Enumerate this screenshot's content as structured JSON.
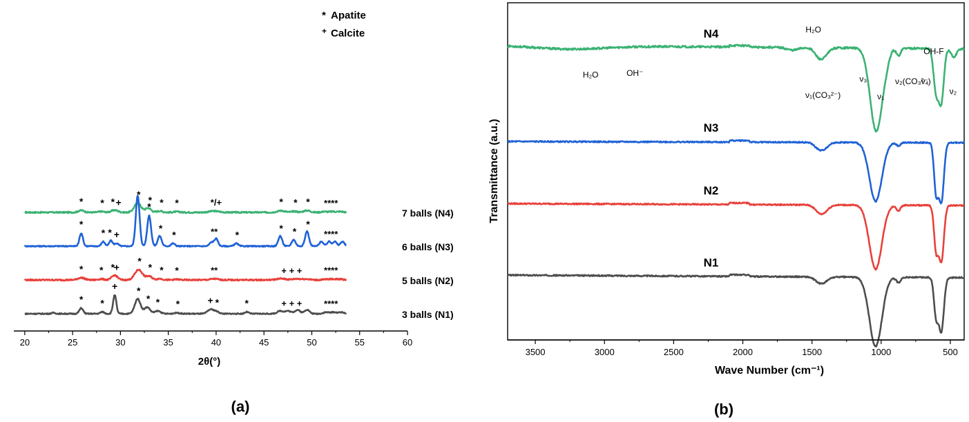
{
  "chart_data": [
    {
      "type": "line",
      "panel_label": "(a)",
      "xlabel": "2θ(°)",
      "ylabel": "",
      "xlim": [
        19,
        60
      ],
      "xticks": [
        20,
        25,
        30,
        35,
        40,
        45,
        50,
        55,
        60
      ],
      "grid": false,
      "legend": {
        "position": "top-right",
        "entries": [
          {
            "marker": "*",
            "label": "Apatite"
          },
          {
            "marker": "+",
            "label": "Calcite"
          }
        ]
      },
      "colors": {
        "N1": "#4d4d4d",
        "N2": "#e8413b",
        "N3": "#1f62d6",
        "N4": "#3bb273"
      },
      "series": [
        {
          "key": "N4",
          "name": "7 balls (N4)",
          "baseline": 0.6,
          "noise": 0.004,
          "scale": 0.5,
          "peaks": [
            [
              25.9,
              0.12,
              0.3
            ],
            [
              28.0,
              0.05,
              0.3
            ],
            [
              29.4,
              0.13,
              0.35
            ],
            [
              31.8,
              0.55,
              0.35
            ],
            [
              32.9,
              0.26,
              0.3
            ],
            [
              34.1,
              0.08,
              0.3
            ],
            [
              35.9,
              0.04,
              0.3
            ],
            [
              39.8,
              0.08,
              0.5
            ],
            [
              46.8,
              0.1,
              0.4
            ],
            [
              48.2,
              0.06,
              0.3
            ],
            [
              49.5,
              0.11,
              0.35
            ],
            [
              51.3,
              0.05,
              0.3
            ],
            [
              52.2,
              0.05,
              0.3
            ],
            [
              53.0,
              0.05,
              0.3
            ]
          ],
          "annotations": [
            {
              "x": 25.9,
              "t": "*"
            },
            {
              "x": 28.1,
              "t": "*"
            },
            {
              "x": 29.2,
              "t": "*"
            },
            {
              "x": 29.8,
              "t": "+"
            },
            {
              "x": 31.9,
              "t": "*"
            },
            {
              "x": 33.1,
              "t": "*"
            },
            {
              "x": 34.3,
              "t": "*"
            },
            {
              "x": 35.9,
              "t": "*"
            },
            {
              "x": 40.0,
              "t": "*/+"
            },
            {
              "x": 46.8,
              "t": "*"
            },
            {
              "x": 48.3,
              "t": "*"
            },
            {
              "x": 49.6,
              "t": "*"
            },
            {
              "x": 52.0,
              "t": "****"
            }
          ]
        },
        {
          "key": "N3",
          "name": "6 balls (N3)",
          "baseline": 0.4,
          "noise": 0.003,
          "scale": 0.55,
          "peaks": [
            [
              25.9,
              0.7,
              0.18
            ],
            [
              28.2,
              0.25,
              0.18
            ],
            [
              29.0,
              0.3,
              0.18
            ],
            [
              29.6,
              0.15,
              0.2
            ],
            [
              31.8,
              2.7,
              0.2
            ],
            [
              33.0,
              1.65,
              0.2
            ],
            [
              34.1,
              0.55,
              0.2
            ],
            [
              35.5,
              0.15,
              0.2
            ],
            [
              39.5,
              0.2,
              0.2
            ],
            [
              40.0,
              0.4,
              0.2
            ],
            [
              42.1,
              0.15,
              0.2
            ],
            [
              46.7,
              0.55,
              0.2
            ],
            [
              48.1,
              0.35,
              0.2
            ],
            [
              49.5,
              0.8,
              0.2
            ],
            [
              51.0,
              0.25,
              0.2
            ],
            [
              51.8,
              0.25,
              0.2
            ],
            [
              52.4,
              0.25,
              0.2
            ],
            [
              53.2,
              0.25,
              0.2
            ]
          ],
          "annotations": [
            {
              "x": 25.9,
              "t": "*"
            },
            {
              "x": 28.2,
              "t": "*"
            },
            {
              "x": 28.9,
              "t": "*"
            },
            {
              "x": 29.6,
              "t": "+"
            },
            {
              "x": 33.0,
              "t": "*"
            },
            {
              "x": 34.2,
              "t": "*"
            },
            {
              "x": 35.6,
              "t": "*"
            },
            {
              "x": 39.8,
              "t": "**"
            },
            {
              "x": 42.2,
              "t": "*"
            },
            {
              "x": 46.8,
              "t": "*"
            },
            {
              "x": 48.2,
              "t": "*"
            },
            {
              "x": 49.6,
              "t": "*"
            },
            {
              "x": 52.0,
              "t": "****"
            }
          ]
        },
        {
          "key": "N2",
          "name": "5 balls (N2)",
          "baseline": 0.2,
          "noise": 0.004,
          "scale": 0.55,
          "peaks": [
            [
              25.9,
              0.12,
              0.35
            ],
            [
              28.0,
              0.05,
              0.3
            ],
            [
              29.4,
              0.25,
              0.3
            ],
            [
              31.9,
              0.55,
              0.4
            ],
            [
              33.0,
              0.2,
              0.3
            ],
            [
              34.1,
              0.07,
              0.3
            ],
            [
              35.9,
              0.03,
              0.3
            ],
            [
              39.8,
              0.06,
              0.4
            ],
            [
              46.8,
              0.07,
              0.5
            ],
            [
              48.4,
              0.06,
              0.4
            ],
            [
              49.4,
              0.05,
              0.4
            ],
            [
              51.8,
              0.04,
              0.5
            ],
            [
              52.8,
              0.04,
              0.5
            ]
          ],
          "annotations": [
            {
              "x": 25.9,
              "t": "*"
            },
            {
              "x": 28.0,
              "t": "*"
            },
            {
              "x": 29.2,
              "t": "*"
            },
            {
              "x": 29.6,
              "t": "+"
            },
            {
              "x": 32.0,
              "t": "*"
            },
            {
              "x": 33.1,
              "t": "*"
            },
            {
              "x": 34.3,
              "t": "*"
            },
            {
              "x": 35.9,
              "t": "*"
            },
            {
              "x": 39.8,
              "t": "**"
            },
            {
              "x": 47.9,
              "t": "+ + +"
            },
            {
              "x": 52.0,
              "t": "****"
            }
          ]
        },
        {
          "key": "N1",
          "name": "3 balls (N1)",
          "baseline": 0.0,
          "noise": 0.003,
          "scale": 0.55,
          "peaks": [
            [
              23.0,
              0.05,
              0.2
            ],
            [
              25.9,
              0.3,
              0.2
            ],
            [
              28.1,
              0.1,
              0.2
            ],
            [
              29.4,
              1.0,
              0.17
            ],
            [
              31.8,
              0.8,
              0.3
            ],
            [
              32.8,
              0.35,
              0.3
            ],
            [
              33.9,
              0.15,
              0.3
            ],
            [
              35.9,
              0.05,
              0.3
            ],
            [
              39.4,
              0.22,
              0.3
            ],
            [
              40.0,
              0.12,
              0.3
            ],
            [
              43.2,
              0.1,
              0.2
            ],
            [
              46.7,
              0.15,
              0.3
            ],
            [
              47.5,
              0.15,
              0.3
            ],
            [
              48.5,
              0.2,
              0.3
            ],
            [
              49.5,
              0.22,
              0.25
            ],
            [
              51.5,
              0.08,
              0.3
            ],
            [
              52.3,
              0.08,
              0.3
            ],
            [
              53.1,
              0.08,
              0.3
            ]
          ],
          "annotations": [
            {
              "x": 25.9,
              "t": "*"
            },
            {
              "x": 28.1,
              "t": "*"
            },
            {
              "x": 29.4,
              "t": "+"
            },
            {
              "x": 31.9,
              "t": "*"
            },
            {
              "x": 32.9,
              "t": "*"
            },
            {
              "x": 33.9,
              "t": "*"
            },
            {
              "x": 36.0,
              "t": "*"
            },
            {
              "x": 39.4,
              "t": "+"
            },
            {
              "x": 40.1,
              "t": "*"
            },
            {
              "x": 43.2,
              "t": "*"
            },
            {
              "x": 47.9,
              "t": "+ + +"
            },
            {
              "x": 52.0,
              "t": "****"
            }
          ]
        }
      ]
    },
    {
      "type": "line",
      "panel_label": "(b)",
      "xlabel": "Wave Number (cm⁻¹)",
      "ylabel": "Transmittance (a.u.)",
      "xlim": [
        3700,
        400
      ],
      "x_reversed": true,
      "xticks": [
        3500,
        3000,
        2500,
        2000,
        1500,
        1000,
        500
      ],
      "grid": false,
      "colors": {
        "N1": "#4d4d4d",
        "N2": "#e8413b",
        "N3": "#1f62d6",
        "N4": "#3bb273"
      },
      "series": [
        {
          "key": "N4",
          "name": "N4",
          "baseline": 0.9,
          "noise": 0.003,
          "slope": 0.01,
          "scale": 1.0,
          "bands": [
            [
              3250,
              0.03,
              250
            ],
            [
              1640,
              0.025,
              40
            ],
            [
              1460,
              0.045,
              30
            ],
            [
              1420,
              0.085,
              35
            ],
            [
              1035,
              0.78,
              45
            ],
            [
              960,
              0.05,
              20
            ],
            [
              875,
              0.07,
              15
            ],
            [
              603,
              0.4,
              18
            ],
            [
              565,
              0.48,
              18
            ],
            [
              475,
              0.08,
              20
            ]
          ],
          "annotations": [
            {
              "x": 3100,
              "t": "H₂O"
            },
            {
              "x": 2780,
              "t": "OH⁻"
            },
            {
              "x": 1490,
              "t": "H₂O"
            },
            {
              "x": 1420,
              "t": "ν₁(CO₃²⁻)"
            },
            {
              "x": 1003,
              "t": "ν₁"
            },
            {
              "x": 1130,
              "t": "ν₃"
            },
            {
              "x": 770,
              "t": "ν₂(CO₃²⁻)"
            },
            {
              "x": 620,
              "t": "OH-F"
            },
            {
              "x": 685,
              "t": "ν₄"
            },
            {
              "x": 480,
              "t": "ν₂"
            }
          ]
        },
        {
          "key": "N3",
          "name": "N3",
          "baseline": 0.6,
          "noise": 0.002,
          "slope": 0.004,
          "scale": 1.0,
          "bands": [
            [
              1460,
              0.03,
              30
            ],
            [
              1420,
              0.06,
              35
            ],
            [
              1040,
              0.55,
              45
            ],
            [
              875,
              0.03,
              15
            ],
            [
              603,
              0.45,
              15
            ],
            [
              565,
              0.55,
              18
            ]
          ]
        },
        {
          "key": "N2",
          "name": "N2",
          "baseline": 0.4,
          "noise": 0.002,
          "slope": 0.006,
          "scale": 1.0,
          "bands": [
            [
              1460,
              0.03,
              30
            ],
            [
              1420,
              0.07,
              35
            ],
            [
              1040,
              0.6,
              45
            ],
            [
              875,
              0.05,
              15
            ],
            [
              603,
              0.4,
              15
            ],
            [
              565,
              0.52,
              18
            ]
          ]
        },
        {
          "key": "N1",
          "name": "N1",
          "baseline": 0.17,
          "noise": 0.002,
          "slope": 0.008,
          "scale": 1.0,
          "bands": [
            [
              1460,
              0.025,
              30
            ],
            [
              1420,
              0.05,
              35
            ],
            [
              1040,
              0.65,
              45
            ],
            [
              875,
              0.05,
              15
            ],
            [
              603,
              0.35,
              15
            ],
            [
              565,
              0.5,
              18
            ]
          ]
        }
      ]
    }
  ]
}
